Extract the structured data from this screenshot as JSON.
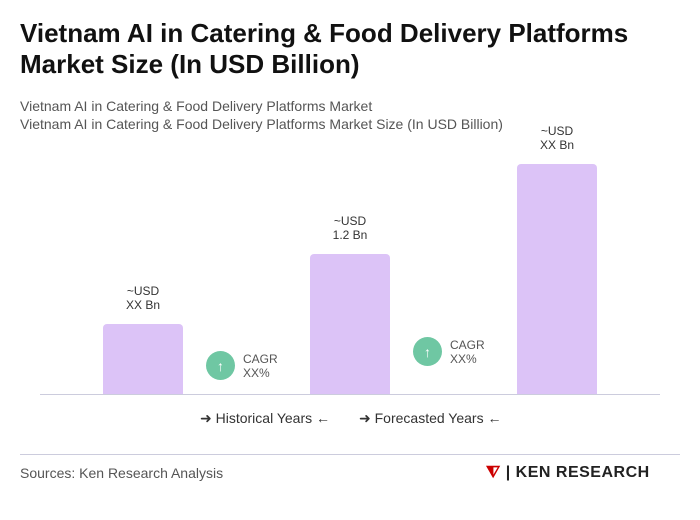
{
  "title": "Vietnam AI in Catering & Food Delivery Platforms Market Size (In USD Billion)",
  "subtitle1": "Vietnam AI in Catering & Food Delivery Platforms Market",
  "subtitle2": "Vietnam AI in Catering & Food Delivery Platforms Market Size (In USD Billion)",
  "chart_data": {
    "type": "bar",
    "categories": [
      "",
      "",
      ""
    ],
    "values": [
      0.6,
      1.2,
      1.97
    ],
    "data_labels": [
      [
        "~USD",
        "XX Bn"
      ],
      [
        "~USD",
        "1.2 Bn"
      ],
      [
        "~USD",
        "XX Bn"
      ]
    ],
    "bar_color": "#dcc3f7",
    "cagr": [
      {
        "label": "CAGR",
        "value": "XX%"
      },
      {
        "label": "CAGR",
        "value": "XX%"
      }
    ],
    "legend": [
      "Historical Years",
      "Forecasted Years"
    ],
    "grid": false
  },
  "colors": {
    "cagr_circle": "#6fc7a3"
  },
  "footer": {
    "source": "Sources: Ken Research Analysis",
    "logo": "KEN RESEARCH"
  }
}
